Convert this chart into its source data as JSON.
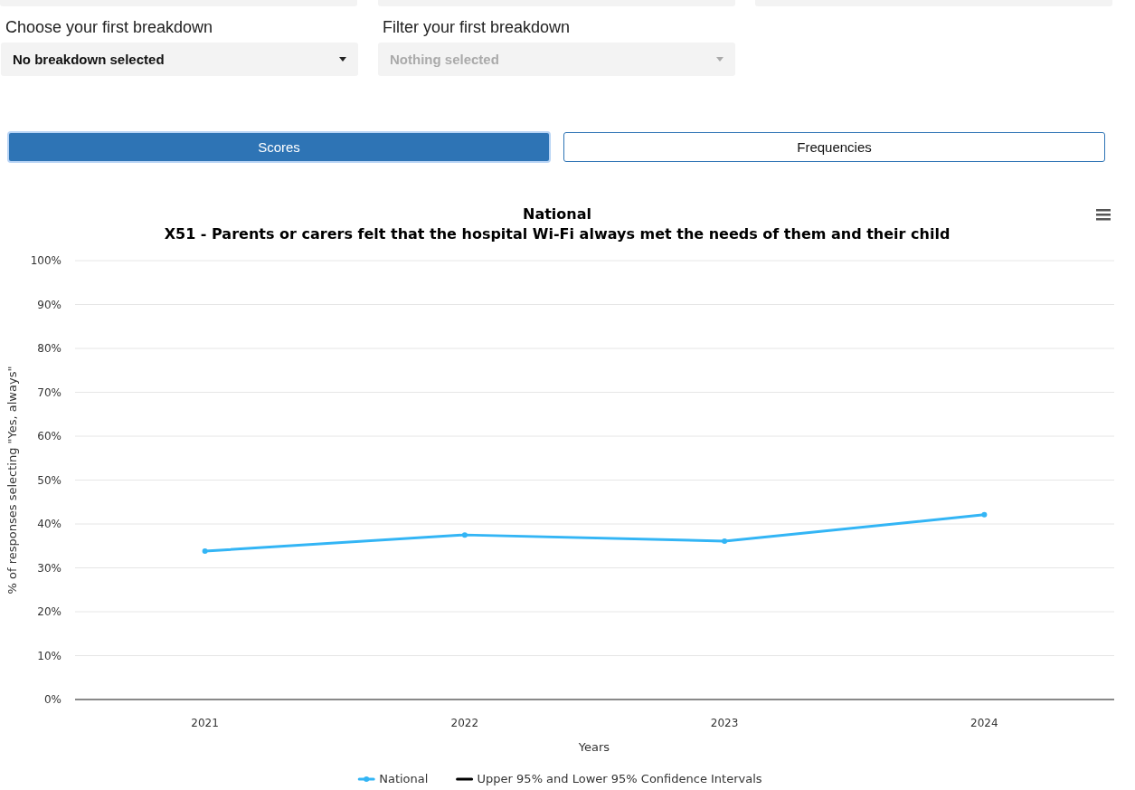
{
  "chart_data": [
    {
      "type": "other",
      "annotations": [
        "Choose your first breakdown",
        "No breakdown selected",
        "Filter your first breakdown",
        "Nothing selected",
        "Scores",
        "Frequencies"
      ]
    },
    {
      "type": "line",
      "title": "National",
      "subtitle": "X51 - Parents or carers felt that the hospital Wi-Fi always met the needs of them and their child",
      "xlabel": "Years",
      "ylabel": "% of responses selecting \"Yes, always\"",
      "categories": [
        "2021",
        "2022",
        "2023",
        "2024"
      ],
      "series": [
        {
          "name": "National",
          "color": "#33b5f5",
          "values": [
            33.8,
            37.5,
            36.1,
            42.1
          ]
        },
        {
          "name": "Upper 95% and Lower 95% Confidence Intervals",
          "color": "#000000",
          "values": [
            null,
            null,
            null,
            null
          ]
        }
      ],
      "ylim": [
        0,
        100
      ],
      "yticks": [
        {
          "value": 0,
          "label": "0%"
        },
        {
          "value": 10,
          "label": "10%"
        },
        {
          "value": 20,
          "label": "20%"
        },
        {
          "value": 30,
          "label": "30%"
        },
        {
          "value": 40,
          "label": "40%"
        },
        {
          "value": 50,
          "label": "50%"
        },
        {
          "value": 60,
          "label": "60%"
        },
        {
          "value": 70,
          "label": "70%"
        },
        {
          "value": 80,
          "label": "80%"
        },
        {
          "value": 90,
          "label": "90%"
        },
        {
          "value": 100,
          "label": "100%"
        }
      ],
      "grid": "y",
      "legend": "bottom",
      "marker": "circle",
      "line_style": "solid"
    }
  ]
}
